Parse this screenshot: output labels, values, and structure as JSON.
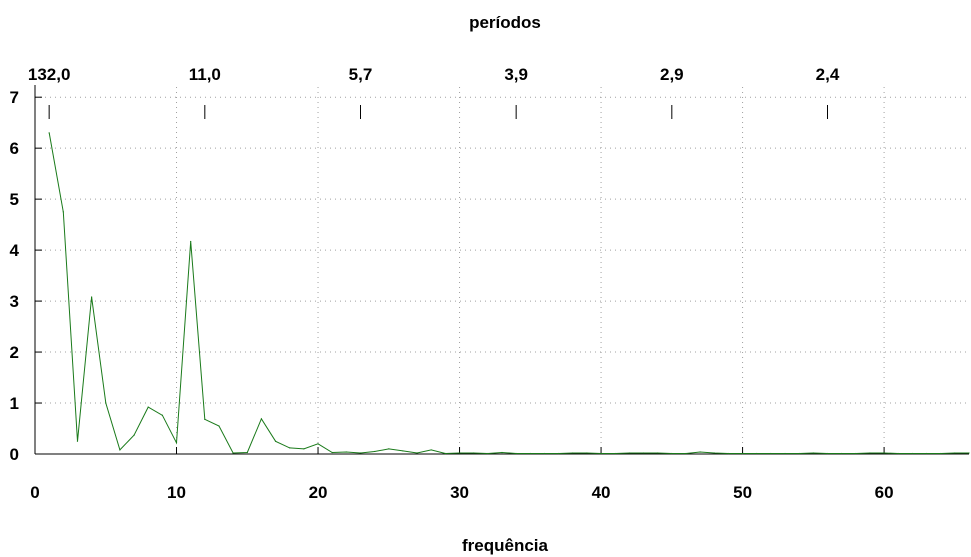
{
  "chart_data": {
    "type": "line",
    "title": "",
    "xlabel": "frequência",
    "x2label": "períodos",
    "ylabel": "",
    "xlim": [
      0,
      66
    ],
    "ylim": [
      0,
      7.2
    ],
    "grid": true,
    "line_color": "#1a7a1a",
    "grid_color": "#a0a0a0",
    "x_ticks": [
      0,
      10,
      20,
      30,
      40,
      50,
      60
    ],
    "x_tick_labels": [
      "0",
      "10",
      "20",
      "30",
      "40",
      "50",
      "60"
    ],
    "y_ticks": [
      0,
      1,
      2,
      3,
      4,
      5,
      6,
      7
    ],
    "y_tick_labels": [
      "0",
      "1",
      "2",
      "3",
      "4",
      "5",
      "6",
      "7"
    ],
    "top_ticks": [
      1,
      12,
      23,
      34,
      45,
      56
    ],
    "top_tick_labels": [
      "132,0",
      "11,0",
      "5,7",
      "3,9",
      "2,9",
      "2,4"
    ],
    "series": [
      {
        "x": [
          1,
          2,
          3,
          4,
          5,
          6,
          7,
          8,
          9,
          10,
          11,
          12,
          13,
          14,
          15,
          16,
          17,
          18,
          19,
          20,
          21,
          22,
          23,
          24,
          25,
          26,
          27,
          28,
          29,
          30,
          31,
          32,
          33,
          34,
          35,
          36,
          37,
          38,
          39,
          40,
          41,
          42,
          43,
          44,
          45,
          46,
          47,
          48,
          49,
          50,
          51,
          52,
          53,
          54,
          55,
          56,
          57,
          58,
          59,
          60,
          61,
          62,
          63,
          64,
          65,
          66
        ],
        "y": [
          6.3,
          4.75,
          0.25,
          3.08,
          1.0,
          0.08,
          0.37,
          0.92,
          0.76,
          0.22,
          4.17,
          0.68,
          0.55,
          0.02,
          0.03,
          0.69,
          0.25,
          0.12,
          0.1,
          0.2,
          0.03,
          0.04,
          0.02,
          0.05,
          0.1,
          0.06,
          0.02,
          0.08,
          0.01,
          0.02,
          0.02,
          0.01,
          0.03,
          0.01,
          0.01,
          0.01,
          0.01,
          0.02,
          0.02,
          0.01,
          0.01,
          0.02,
          0.02,
          0.02,
          0.01,
          0.01,
          0.04,
          0.02,
          0.01,
          0.01,
          0.01,
          0.01,
          0.01,
          0.01,
          0.02,
          0.01,
          0.01,
          0.01,
          0.02,
          0.02,
          0.01,
          0.01,
          0.01,
          0.01,
          0.02,
          0.02
        ]
      }
    ]
  }
}
